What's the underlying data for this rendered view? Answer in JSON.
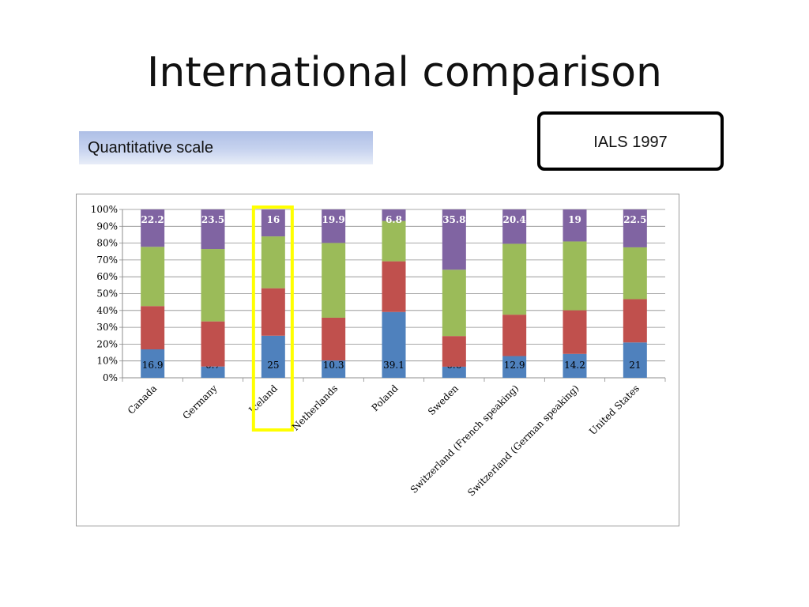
{
  "slide": {
    "title": "International comparison",
    "scale_label": "Quantitative scale",
    "survey_label": "IALS 1997"
  },
  "colors": {
    "segment_1": "#4f81bd",
    "segment_2": "#c0504d",
    "segment_3": "#9bbb59",
    "segment_4": "#8064a2",
    "highlight": "#ffff00"
  },
  "chart_data": {
    "type": "bar",
    "stacked": true,
    "percent_stacked": true,
    "categories": [
      "Canada",
      "Germany",
      "Iceland",
      "Netherlands",
      "Poland",
      "Sweden",
      "Switzerland (French speaking)",
      "Switzerland (German speaking)",
      "United States"
    ],
    "series": [
      {
        "values": [
          16.9,
          6.7,
          25,
          10.3,
          39.1,
          6.6,
          12.9,
          14.2,
          21
        ],
        "labels": [
          "16.9",
          "6.7",
          "25",
          "10.3",
          "39.1",
          "6.6",
          "12.9",
          "14.2",
          "21"
        ]
      },
      {
        "values": [
          25.7,
          26.8,
          28.2,
          25.4,
          30.1,
          18.2,
          24.6,
          25.9,
          25.7
        ]
      },
      {
        "values": [
          35.2,
          43,
          30.8,
          44.4,
          24,
          39.4,
          42.1,
          40.9,
          30.8
        ]
      },
      {
        "values": [
          22.2,
          23.5,
          16,
          19.9,
          6.8,
          35.8,
          20.4,
          19,
          22.5
        ],
        "labels": [
          "22.2",
          "23.5",
          "16",
          "19.9",
          "6.8",
          "35.8",
          "20.4",
          "19",
          "22.5"
        ]
      }
    ],
    "y_ticks": [
      "0%",
      "10%",
      "20%",
      "30%",
      "40%",
      "50%",
      "60%",
      "70%",
      "80%",
      "90%",
      "100%"
    ],
    "ylim": [
      0,
      100
    ],
    "grid": true,
    "legend": "none",
    "highlighted_category": "Iceland",
    "title": "",
    "xlabel": "",
    "ylabel": ""
  }
}
